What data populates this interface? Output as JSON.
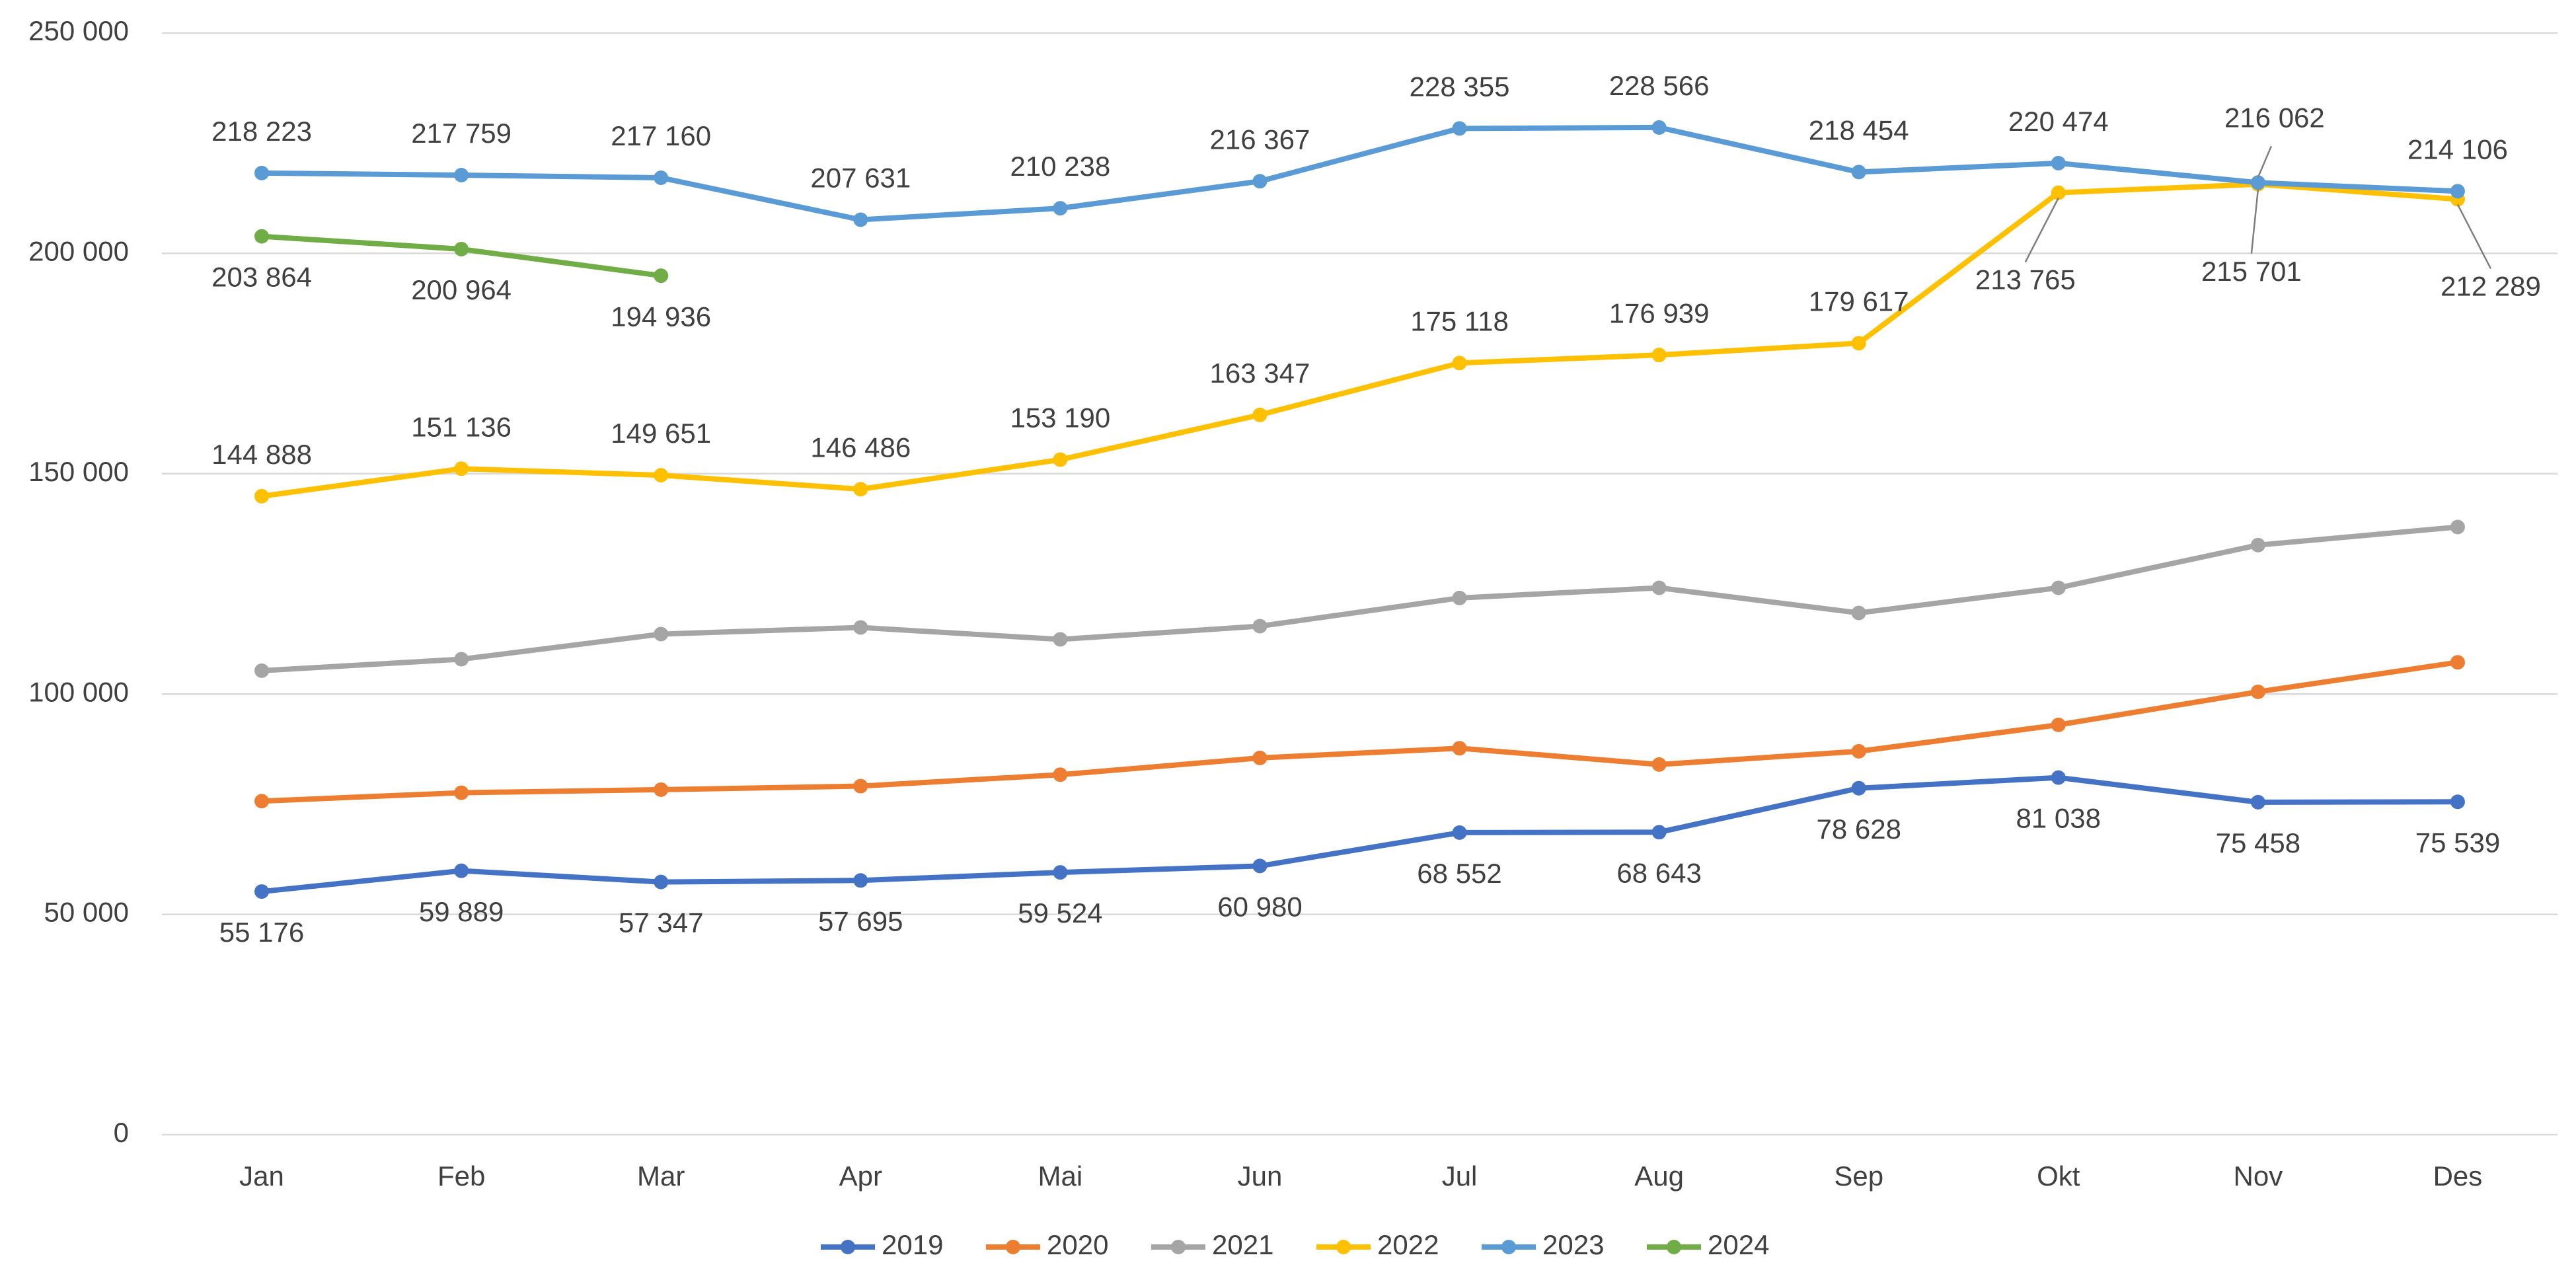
{
  "chart_data": {
    "type": "line",
    "categories": [
      "Jan",
      "Feb",
      "Mar",
      "Apr",
      "Mai",
      "Jun",
      "Jul",
      "Aug",
      "Sep",
      "Okt",
      "Nov",
      "Des"
    ],
    "ylim": [
      0,
      250000
    ],
    "yticks": [
      {
        "value": 0,
        "label": "0"
      },
      {
        "value": 50000,
        "label": "50 000"
      },
      {
        "value": 100000,
        "label": "100 000"
      },
      {
        "value": 150000,
        "label": "150 000"
      },
      {
        "value": 200000,
        "label": "200 000"
      },
      {
        "value": 250000,
        "label": "250 000"
      }
    ],
    "grid": true,
    "legend": "bottom",
    "series": [
      {
        "name": "2019",
        "color": "#4472c4",
        "values": [
          55176,
          59889,
          57347,
          57695,
          59524,
          60980,
          68552,
          68643,
          78628,
          81038,
          75458,
          75539
        ],
        "value_labels": [
          "55 176",
          "59 889",
          "57 347",
          "57 695",
          "59 524",
          "60 980",
          "68 552",
          "68 643",
          "78 628",
          "81 038",
          "75 458",
          "75 539"
        ]
      },
      {
        "name": "2020",
        "color": "#ed7d31",
        "values": [
          75700,
          77600,
          78300,
          79100,
          81700,
          85500,
          87700,
          84000,
          87000,
          93000,
          100500,
          107200
        ]
      },
      {
        "name": "2021",
        "color": "#a5a5a5",
        "values": [
          105300,
          107900,
          113600,
          115100,
          112400,
          115400,
          121800,
          124100,
          118400,
          124100,
          133800,
          137900
        ]
      },
      {
        "name": "2022",
        "color": "#ffc000",
        "values": [
          144888,
          151136,
          149651,
          146486,
          153190,
          163347,
          175118,
          176939,
          179617,
          213765,
          215701,
          212289
        ],
        "value_labels": [
          "144 888",
          "151 136",
          "149 651",
          "146 486",
          "153 190",
          "163 347",
          "175 118",
          "176 939",
          "179 617",
          "213 765",
          "215 701",
          "212 289"
        ]
      },
      {
        "name": "2023",
        "color": "#5b9bd5",
        "values": [
          218223,
          217759,
          217160,
          207631,
          210238,
          216367,
          228355,
          228566,
          218454,
          220474,
          216062,
          214106
        ],
        "value_labels": [
          "218 223",
          "217 759",
          "217 160",
          "207 631",
          "210 238",
          "216 367",
          "228 355",
          "228 566",
          "218 454",
          "220 474",
          "216 062",
          "214 106"
        ]
      },
      {
        "name": "2024",
        "color": "#70ad47",
        "values": [
          203864,
          200964,
          194936,
          null,
          null,
          null,
          null,
          null,
          null,
          null,
          null,
          null
        ],
        "value_labels": [
          "203 864",
          "200 964",
          "194 936",
          null,
          null,
          null,
          null,
          null,
          null,
          null,
          null,
          null
        ]
      }
    ]
  }
}
